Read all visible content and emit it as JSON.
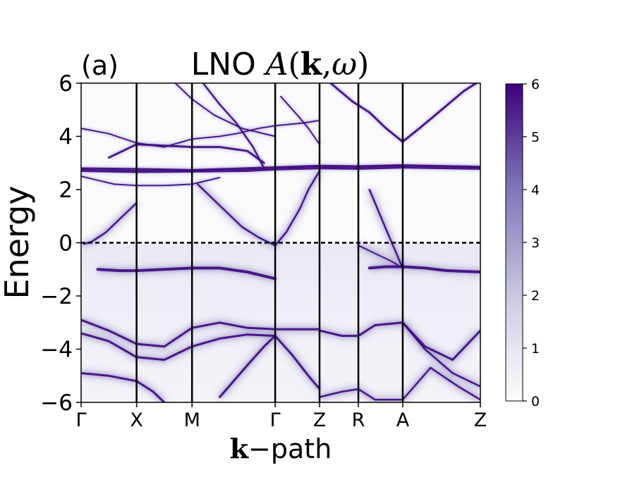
{
  "chart_data": {
    "type": "heatmap",
    "panel_label": "(a)",
    "title": {
      "prefix": "LNO ",
      "func": "A",
      "open": "(",
      "k": "k",
      "comma": ",",
      "omega": "ω",
      "close": ")"
    },
    "ylabel": "Energy",
    "xlabel": {
      "k": "k",
      "rest": "−path"
    },
    "ylim": [
      -6,
      6
    ],
    "yticks": [
      6,
      4,
      2,
      0,
      -2,
      -4,
      -6
    ],
    "ytick_labels": [
      "6",
      "4",
      "2",
      "0",
      "−2",
      "−4",
      "−6"
    ],
    "kpath_positions": [
      0,
      1,
      2,
      3.5,
      4.3,
      5,
      5.8,
      7.2
    ],
    "kpath_labels": [
      "Γ",
      "X",
      "M",
      "Γ",
      "Z",
      "R",
      "A",
      "Z"
    ],
    "fermi_level": 0,
    "colorbar": {
      "range": [
        0,
        6
      ],
      "ticks": [
        0,
        1,
        2,
        3,
        4,
        5,
        6
      ],
      "tick_labels": [
        "0",
        "1",
        "2",
        "3",
        "4",
        "5",
        "6"
      ],
      "colormap": "Purples"
    },
    "bands": [
      {
        "name": "flat-upper-a",
        "k": [
          0,
          1,
          2,
          3,
          3.5,
          4.3,
          5,
          5.8,
          7.2
        ],
        "E": [
          2.72,
          2.68,
          2.7,
          2.72,
          2.78,
          2.82,
          2.8,
          2.85,
          2.8
        ],
        "w": 4.5
      },
      {
        "name": "flat-upper-b",
        "k": [
          0,
          1,
          2,
          3.5,
          4.3,
          5,
          5.8,
          7.2
        ],
        "E": [
          2.8,
          2.78,
          2.74,
          2.84,
          2.9,
          2.88,
          2.92,
          2.86
        ],
        "w": 2.5
      },
      {
        "name": "upper-3.6",
        "k": [
          0.5,
          1,
          1.5,
          2,
          2.5,
          3,
          3.3
        ],
        "E": [
          3.2,
          3.7,
          3.65,
          3.6,
          3.6,
          3.45,
          3.0
        ],
        "w": 3
      },
      {
        "name": "upper-4.3",
        "k": [
          0,
          0.5,
          1,
          1.5,
          2,
          2.5,
          2.8,
          3.2,
          3.5,
          4.0,
          4.3
        ],
        "E": [
          4.3,
          4.1,
          3.75,
          3.6,
          3.9,
          4.0,
          4.1,
          4.3,
          4.4,
          4.5,
          4.6
        ],
        "w": 2
      },
      {
        "name": "lower-conduction",
        "k": [
          0,
          0.3,
          0.6,
          1,
          1.5,
          2,
          2.5
        ],
        "E": [
          2.5,
          2.35,
          2.2,
          2.15,
          2.15,
          2.2,
          2.45
        ],
        "w": 2
      },
      {
        "name": "steep-GX",
        "k": [
          0.05,
          0.2,
          0.45,
          0.7,
          1
        ],
        "E": [
          -0.05,
          0.05,
          0.4,
          0.9,
          1.5
        ],
        "w": 2.5
      },
      {
        "name": "steep-MG",
        "k": [
          2.1,
          2.5,
          2.9,
          3.2,
          3.45,
          3.5
        ],
        "E": [
          2.2,
          1.4,
          0.6,
          0.2,
          -0.05,
          -0.1
        ],
        "w": 2.5
      },
      {
        "name": "steep-GZ",
        "k": [
          3.5,
          3.7,
          3.95,
          4.1,
          4.3
        ],
        "E": [
          -0.1,
          0.4,
          1.3,
          2.0,
          2.7
        ],
        "w": 2.5
      },
      {
        "name": "steep-GZ-up",
        "k": [
          3.6,
          3.9,
          4.1,
          4.3
        ],
        "E": [
          5.5,
          4.8,
          4.3,
          3.7
        ],
        "w": 2
      },
      {
        "name": "upper-steep-a",
        "k": [
          2.2,
          2.5,
          2.8,
          3.1,
          3.3
        ],
        "E": [
          6.0,
          5.2,
          4.5,
          3.6,
          2.8
        ],
        "w": 2.5
      },
      {
        "name": "upper-steep-b",
        "k": [
          1.7,
          2.0,
          2.4,
          2.9,
          3.5
        ],
        "E": [
          6.0,
          5.4,
          4.8,
          4.3,
          4.0
        ],
        "w": 2
      },
      {
        "name": "A-vee-left",
        "k": [
          4.5,
          4.9,
          5.2,
          5.5,
          5.8
        ],
        "E": [
          6.0,
          5.3,
          4.9,
          4.3,
          3.8
        ],
        "w": 3
      },
      {
        "name": "A-vee-right",
        "k": [
          5.8,
          6.1,
          6.5,
          6.9,
          7.2
        ],
        "E": [
          3.8,
          4.3,
          5.0,
          5.7,
          6.1
        ],
        "w": 3
      },
      {
        "name": "RA-cross-a",
        "k": [
          5.0,
          5.3,
          5.6,
          5.8
        ],
        "E": [
          -0.1,
          -0.4,
          -0.7,
          -0.95
        ],
        "w": 2
      },
      {
        "name": "RA-cross-b",
        "k": [
          5.2,
          5.5,
          5.8
        ],
        "E": [
          2.0,
          0.5,
          -0.95
        ],
        "w": 2.5
      },
      {
        "name": "val-top-left",
        "k": [
          0.3,
          0.7,
          1,
          1.5,
          2,
          2.5,
          3,
          3.5
        ],
        "E": [
          -1.0,
          -1.05,
          -1.05,
          -1.0,
          -0.95,
          -0.95,
          -1.1,
          -1.35
        ],
        "w": 4
      },
      {
        "name": "val-top-right",
        "k": [
          5.2,
          5.5,
          5.8,
          6.2,
          6.6,
          7.2
        ],
        "E": [
          -0.95,
          -0.9,
          -0.9,
          -0.95,
          -1.05,
          -1.1
        ],
        "w": 4
      },
      {
        "name": "val-mid-1",
        "k": [
          0,
          0.5,
          1,
          1.5,
          2,
          2.5,
          3,
          3.5,
          4.3
        ],
        "E": [
          -2.9,
          -3.3,
          -3.8,
          -3.9,
          -3.2,
          -3.0,
          -3.2,
          -3.25,
          -3.25
        ],
        "w": 3
      },
      {
        "name": "val-mid-2",
        "k": [
          0,
          0.5,
          1,
          1.5,
          2,
          2.5,
          3,
          3.5
        ],
        "E": [
          -3.4,
          -3.7,
          -4.3,
          -4.4,
          -3.9,
          -3.6,
          -3.45,
          -3.5
        ],
        "w": 3
      },
      {
        "name": "val-mid-3",
        "k": [
          4.3,
          4.7,
          5,
          5.3,
          5.8,
          6.2,
          6.7,
          7.2
        ],
        "E": [
          -3.3,
          -3.5,
          -3.5,
          -3.1,
          -3.0,
          -3.9,
          -4.4,
          -3.3
        ],
        "w": 3
      },
      {
        "name": "val-low-1",
        "k": [
          0,
          0.5,
          1,
          1.3,
          1.5
        ],
        "E": [
          -4.9,
          -5.0,
          -5.2,
          -5.6,
          -6.0
        ],
        "w": 3
      },
      {
        "name": "val-low-2",
        "k": [
          2.5,
          3,
          3.3,
          3.5,
          3.8,
          4.1,
          4.3
        ],
        "E": [
          -5.8,
          -4.6,
          -3.9,
          -3.5,
          -4.2,
          -5.0,
          -5.5
        ],
        "w": 3
      },
      {
        "name": "val-low-3",
        "k": [
          4.3,
          4.7,
          5,
          5.3,
          5.8,
          6.3,
          6.8,
          7.2
        ],
        "E": [
          -5.8,
          -5.6,
          -5.5,
          -5.9,
          -5.9,
          -4.7,
          -5.4,
          -5.9
        ],
        "w": 2.5
      },
      {
        "name": "val-low-4",
        "k": [
          5.8,
          6.2,
          6.7,
          7.2
        ],
        "E": [
          -3.0,
          -4.0,
          -4.9,
          -5.4
        ],
        "w": 2.5
      }
    ]
  }
}
